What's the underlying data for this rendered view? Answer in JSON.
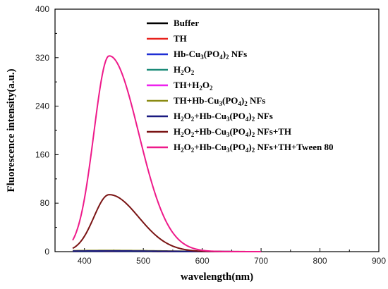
{
  "chart_data": {
    "type": "line",
    "xlabel": "wavelength(nm)",
    "ylabel": "Fluorescence intensity(a.u.)",
    "xlim": [
      350,
      900
    ],
    "ylim": [
      0,
      400
    ],
    "xticks": [
      400,
      500,
      600,
      700,
      800,
      900
    ],
    "yticks": [
      0,
      80,
      160,
      240,
      320,
      400
    ],
    "grid": false,
    "legend_position": "top-center",
    "series": [
      {
        "name": "Buffer",
        "color": "#000000",
        "shape": "flat",
        "peak": 0.3
      },
      {
        "name": "TH",
        "color": "#e8211c",
        "shape": "flat",
        "peak": 0.6
      },
      {
        "name": "Hb-Cu3(PO4)2 NFs",
        "color": "#1f2fd4",
        "shape": "flat",
        "peak": 0.8
      },
      {
        "name": "H2O2",
        "color": "#1b8a78",
        "shape": "flat",
        "peak": 1.0
      },
      {
        "name": "TH+H2O2",
        "color": "#ee22ee",
        "shape": "flat",
        "peak": 1.5
      },
      {
        "name": "TH+Hb-Cu3(PO4)2 NFs",
        "color": "#8a8a12",
        "shape": "flat",
        "peak": 2.0
      },
      {
        "name": "H2O2+Hb-Cu3(PO4)2 NFs",
        "color": "#1a1a80",
        "shape": "flat",
        "peak": 1.2
      },
      {
        "name": "H2O2+Hb-Cu3(PO4)2 NFs+TH",
        "color": "#7a1414",
        "shape": "peak",
        "peak": 94
      },
      {
        "name": "H2O2+Hb-Cu3(PO4)2 NFs+TH+Tween 80",
        "color": "#ee1a8a",
        "shape": "peak",
        "peak": 323
      }
    ],
    "curve": {
      "x_start": 380,
      "x_end": 700,
      "peak_x": 442
    }
  },
  "legend": [
    {
      "base": "Buffer",
      "parts": [
        [
          "t",
          "Buffer"
        ]
      ]
    },
    {
      "base": "TH",
      "parts": [
        [
          "t",
          "TH"
        ]
      ]
    },
    {
      "base": "Hb-Cu3(PO4)2 NFs",
      "parts": [
        [
          "t",
          "Hb-Cu"
        ],
        [
          "s",
          "3"
        ],
        [
          "t",
          "(PO"
        ],
        [
          "s",
          "4"
        ],
        [
          "t",
          ")"
        ],
        [
          "s",
          "2"
        ],
        [
          "t",
          " NFs"
        ]
      ]
    },
    {
      "base": "H2O2",
      "parts": [
        [
          "t",
          "H"
        ],
        [
          "s",
          "2"
        ],
        [
          "t",
          "O"
        ],
        [
          "s",
          "2"
        ]
      ]
    },
    {
      "base": "TH+H2O2",
      "parts": [
        [
          "t",
          "TH+H"
        ],
        [
          "s",
          "2"
        ],
        [
          "t",
          "O"
        ],
        [
          "s",
          "2"
        ]
      ]
    },
    {
      "base": "TH+Hb-Cu3(PO4)2 NFs",
      "parts": [
        [
          "t",
          "TH+Hb-Cu"
        ],
        [
          "s",
          "3"
        ],
        [
          "t",
          "(PO"
        ],
        [
          "s",
          "4"
        ],
        [
          "t",
          ")"
        ],
        [
          "s",
          "2"
        ],
        [
          "t",
          " NFs"
        ]
      ]
    },
    {
      "base": "H2O2+Hb-Cu3(PO4)2 NFs",
      "parts": [
        [
          "t",
          "H"
        ],
        [
          "s",
          "2"
        ],
        [
          "t",
          "O"
        ],
        [
          "s",
          "2"
        ],
        [
          "t",
          "+Hb-Cu"
        ],
        [
          "s",
          "3"
        ],
        [
          "t",
          "(PO"
        ],
        [
          "s",
          "4"
        ],
        [
          "t",
          ")"
        ],
        [
          "s",
          "2"
        ],
        [
          "t",
          " NFs"
        ]
      ]
    },
    {
      "base": "H2O2+Hb-Cu3(PO4)2 NFs+TH",
      "parts": [
        [
          "t",
          "H"
        ],
        [
          "s",
          "2"
        ],
        [
          "t",
          "O"
        ],
        [
          "s",
          "2"
        ],
        [
          "t",
          "+Hb-Cu"
        ],
        [
          "s",
          "3"
        ],
        [
          "t",
          "(PO"
        ],
        [
          "s",
          "4"
        ],
        [
          "t",
          ")"
        ],
        [
          "s",
          "2"
        ],
        [
          "t",
          " NFs+TH"
        ]
      ]
    },
    {
      "base": "H2O2+Hb-Cu3(PO4)2 NFs+TH+Tween 80",
      "parts": [
        [
          "t",
          "H"
        ],
        [
          "s",
          "2"
        ],
        [
          "t",
          "O"
        ],
        [
          "s",
          "2"
        ],
        [
          "t",
          "+Hb-Cu"
        ],
        [
          "s",
          "3"
        ],
        [
          "t",
          "(PO"
        ],
        [
          "s",
          "4"
        ],
        [
          "t",
          ")"
        ],
        [
          "s",
          "2"
        ],
        [
          "t",
          " NFs+TH+Tween 80"
        ]
      ]
    }
  ]
}
